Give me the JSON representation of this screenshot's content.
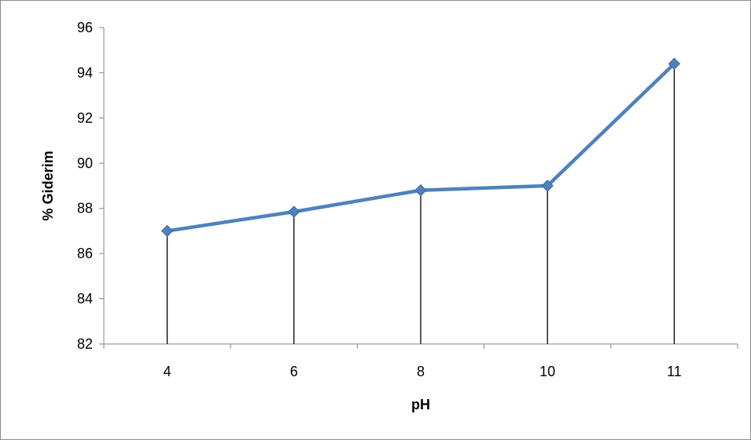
{
  "chart_data": {
    "type": "line",
    "title": "",
    "xlabel": "pH",
    "ylabel": "% Giderim",
    "categories": [
      "4",
      "6",
      "8",
      "10",
      "11"
    ],
    "series": [
      {
        "values": [
          87.0,
          87.85,
          88.8,
          89.0,
          94.4
        ]
      }
    ],
    "ylim": [
      82,
      96
    ],
    "yticks": [
      "82",
      "84",
      "86",
      "88",
      "90",
      "92",
      "94",
      "96"
    ],
    "grid": false,
    "drop_lines": true,
    "legend": "none",
    "colors": {
      "series": "#4F81BD",
      "marker": "#4F81BD",
      "axis": "#868686",
      "drop_line": "#000000"
    }
  }
}
